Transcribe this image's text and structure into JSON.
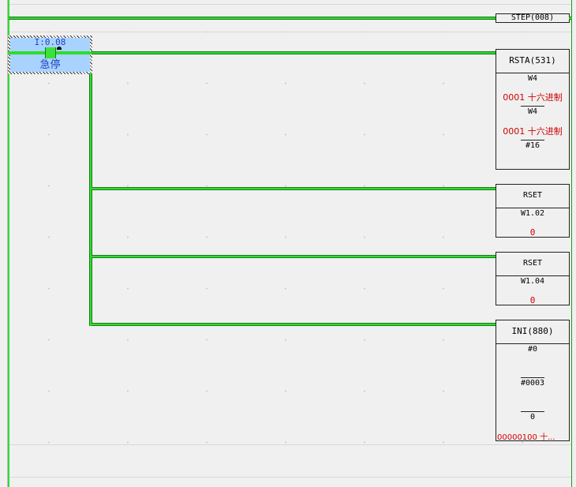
{
  "colors": {
    "power_flow": "#2dde2d",
    "constant_value": "#d00000",
    "contact_selection": "#a9d3ff"
  },
  "rung1": {
    "instruction": "STEP(008)"
  },
  "rung2": {
    "contact": {
      "address": "I:0.08",
      "comment": "急停",
      "icon": "lock-icon"
    },
    "rsta": {
      "instruction": "RSTA(531)",
      "op1": "W4",
      "op1_value": "0001 十六进制",
      "op2": "W4",
      "op2_value": "0001 十六进制",
      "op3": "#16"
    },
    "rset1": {
      "instruction": "RSET",
      "operand": "W1.02",
      "value": "0"
    },
    "rset2": {
      "instruction": "RSET",
      "operand": "W1.04",
      "value": "0"
    },
    "ini": {
      "instruction": "INI(880)",
      "op1": "#0",
      "op2": "#0003",
      "op3": "0",
      "op3_value": "00000100 十..."
    }
  }
}
